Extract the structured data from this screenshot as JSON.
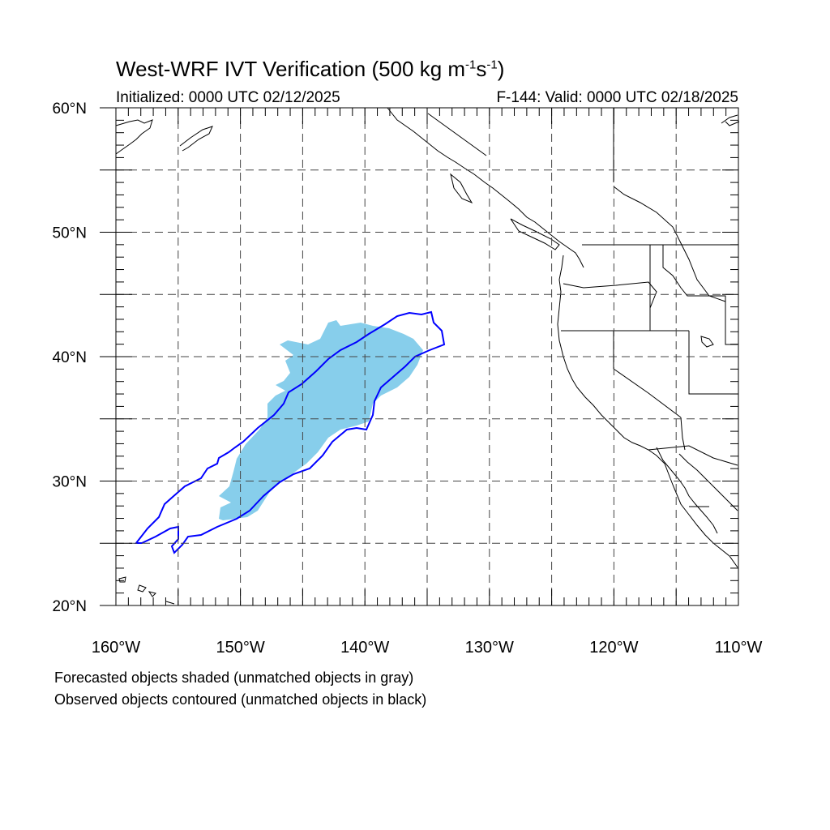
{
  "title": {
    "main": "West-WRF IVT Verification (500 kg m",
    "sup1": "-1",
    "mid": "s",
    "sup2": "-1",
    "end": ")"
  },
  "subtitle": {
    "initialized": "Initialized: 0000 UTC 02/12/2025",
    "valid": "F-144: Valid: 0000 UTC 02/18/2025"
  },
  "map": {
    "lon_range": [
      -160,
      -110
    ],
    "lat_range": [
      20,
      60
    ],
    "lat_labels": [
      "20°N",
      "30°N",
      "40°N",
      "50°N",
      "60°N"
    ],
    "lon_labels": [
      "160°W",
      "150°W",
      "140°W",
      "130°W",
      "120°W",
      "110°W"
    ],
    "grid_lon": [
      -155,
      -150,
      -145,
      -140,
      -135,
      -130,
      -125,
      -120,
      -115
    ],
    "grid_lat": [
      25,
      30,
      35,
      40,
      45,
      50,
      55
    ],
    "forecast_color": "#87CEEB",
    "observed_color": "#0000ff"
  },
  "footer": {
    "line1": "Forecasted objects shaded (unmatched objects in gray)",
    "line2": "Observed objects contoured (unmatched objects in black)"
  }
}
